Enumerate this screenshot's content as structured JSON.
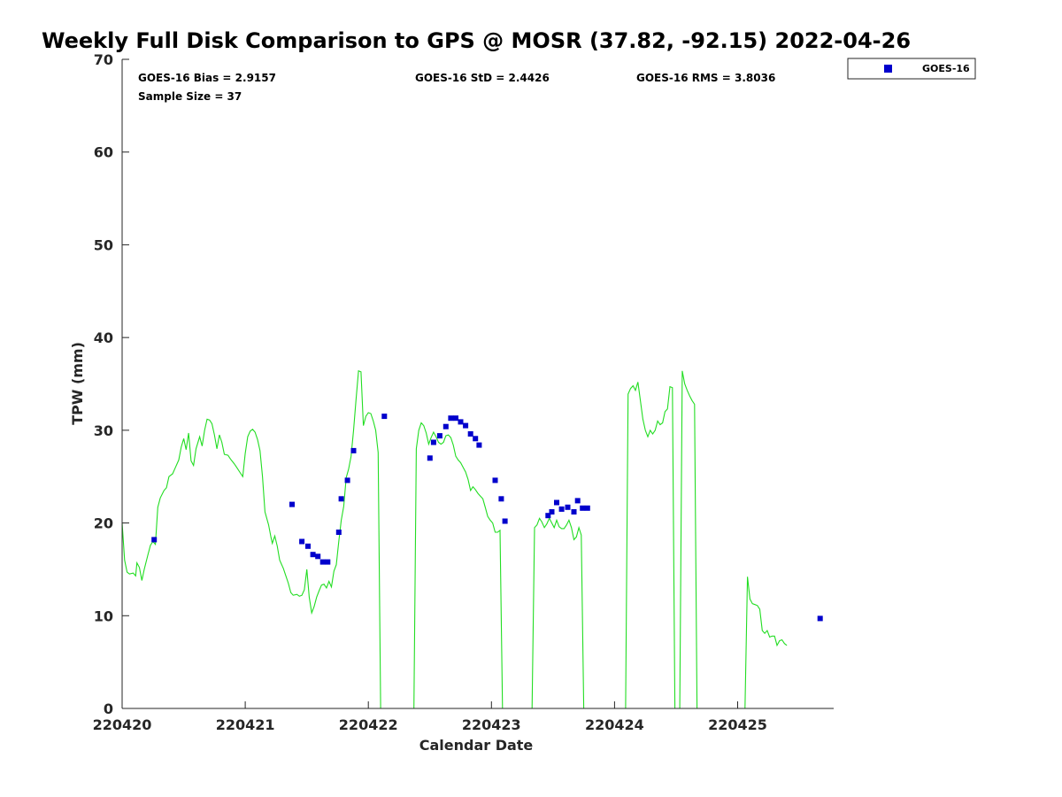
{
  "chart_data": {
    "type": "scatter",
    "title": "Weekly Full Disk Comparison to GPS @ MOSR (37.82, -92.15) 2022-04-26",
    "xlabel": "Calendar Date",
    "ylabel": "TPW (mm)",
    "xlim": [
      0,
      5.78
    ],
    "ylim": [
      0,
      70
    ],
    "x_ticks": [
      {
        "value": 0,
        "label": "220420"
      },
      {
        "value": 1,
        "label": "220421"
      },
      {
        "value": 2,
        "label": "220422"
      },
      {
        "value": 3,
        "label": "220423"
      },
      {
        "value": 4,
        "label": "220424"
      },
      {
        "value": 5,
        "label": "220425"
      }
    ],
    "y_ticks": [
      0,
      10,
      20,
      30,
      40,
      50,
      60,
      70
    ],
    "stats": {
      "bias": "GOES-16 Bias = 2.9157",
      "std": "GOES-16 StD = 2.4426",
      "rms": "GOES-16 RMS = 3.8036",
      "sample": "Sample Size = 37"
    },
    "legend": {
      "label": "GOES-16",
      "position": "top-right outside"
    },
    "colors": {
      "goes": "#0000cc",
      "gps": "#22dd22",
      "axis": "#262626"
    },
    "series": [
      {
        "name": "GOES-16",
        "style": "square-marker",
        "points": [
          [
            0.26,
            18.2
          ],
          [
            1.38,
            22.0
          ],
          [
            1.46,
            18.0
          ],
          [
            1.51,
            17.5
          ],
          [
            1.55,
            16.6
          ],
          [
            1.59,
            16.4
          ],
          [
            1.63,
            15.8
          ],
          [
            1.67,
            15.8
          ],
          [
            1.76,
            19.0
          ],
          [
            1.78,
            22.6
          ],
          [
            1.83,
            24.6
          ],
          [
            1.88,
            27.8
          ],
          [
            2.13,
            31.5
          ],
          [
            2.5,
            27.0
          ],
          [
            2.53,
            28.7
          ],
          [
            2.58,
            29.4
          ],
          [
            2.63,
            30.4
          ],
          [
            2.67,
            31.3
          ],
          [
            2.71,
            31.3
          ],
          [
            2.75,
            30.9
          ],
          [
            2.79,
            30.5
          ],
          [
            2.83,
            29.6
          ],
          [
            2.87,
            29.1
          ],
          [
            2.9,
            28.4
          ],
          [
            3.03,
            24.6
          ],
          [
            3.08,
            22.6
          ],
          [
            3.11,
            20.2
          ],
          [
            3.46,
            20.8
          ],
          [
            3.49,
            21.2
          ],
          [
            3.53,
            22.2
          ],
          [
            3.57,
            21.5
          ],
          [
            3.62,
            21.7
          ],
          [
            3.67,
            21.2
          ],
          [
            3.7,
            22.4
          ],
          [
            3.74,
            21.6
          ],
          [
            3.78,
            21.6
          ],
          [
            5.67,
            9.7
          ]
        ]
      },
      {
        "name": "GPS",
        "style": "line",
        "segments": [
          [
            [
              0.0,
              20.0
            ],
            [
              0.02,
              16.0
            ],
            [
              0.04,
              14.7
            ],
            [
              0.06,
              14.5
            ],
            [
              0.09,
              14.6
            ],
            [
              0.11,
              14.3
            ],
            [
              0.12,
              15.7
            ],
            [
              0.14,
              15.2
            ],
            [
              0.16,
              13.8
            ],
            [
              0.18,
              15.0
            ],
            [
              0.21,
              16.6
            ],
            [
              0.23,
              17.6
            ],
            [
              0.25,
              18.0
            ],
            [
              0.27,
              17.7
            ],
            [
              0.29,
              21.7
            ],
            [
              0.31,
              22.7
            ],
            [
              0.34,
              23.5
            ],
            [
              0.36,
              23.8
            ],
            [
              0.38,
              25.0
            ],
            [
              0.41,
              25.3
            ],
            [
              0.43,
              25.9
            ],
            [
              0.46,
              26.8
            ],
            [
              0.48,
              28.2
            ],
            [
              0.5,
              29.1
            ],
            [
              0.52,
              27.9
            ],
            [
              0.54,
              29.7
            ],
            [
              0.56,
              26.7
            ],
            [
              0.58,
              26.2
            ],
            [
              0.6,
              28.0
            ],
            [
              0.63,
              29.3
            ],
            [
              0.65,
              28.3
            ],
            [
              0.67,
              30.0
            ],
            [
              0.69,
              31.2
            ],
            [
              0.71,
              31.1
            ],
            [
              0.73,
              30.7
            ],
            [
              0.75,
              29.5
            ],
            [
              0.77,
              28.0
            ],
            [
              0.79,
              29.5
            ],
            [
              0.81,
              28.7
            ],
            [
              0.83,
              27.4
            ],
            [
              0.86,
              27.3
            ],
            [
              0.88,
              26.9
            ],
            [
              0.91,
              26.4
            ],
            [
              0.93,
              26.0
            ],
            [
              0.96,
              25.4
            ],
            [
              0.98,
              25.0
            ],
            [
              1.0,
              27.5
            ],
            [
              1.02,
              29.3
            ],
            [
              1.04,
              29.9
            ],
            [
              1.06,
              30.1
            ],
            [
              1.08,
              29.8
            ],
            [
              1.1,
              29.0
            ],
            [
              1.12,
              27.8
            ],
            [
              1.14,
              25.0
            ],
            [
              1.16,
              21.2
            ],
            [
              1.19,
              19.8
            ],
            [
              1.21,
              18.4
            ],
            [
              1.22,
              17.8
            ],
            [
              1.24,
              18.6
            ],
            [
              1.26,
              17.5
            ],
            [
              1.28,
              16.0
            ],
            [
              1.31,
              15.1
            ],
            [
              1.33,
              14.3
            ],
            [
              1.35,
              13.5
            ],
            [
              1.37,
              12.5
            ],
            [
              1.39,
              12.2
            ],
            [
              1.42,
              12.3
            ],
            [
              1.44,
              12.1
            ],
            [
              1.46,
              12.2
            ],
            [
              1.48,
              12.8
            ],
            [
              1.5,
              15.0
            ],
            [
              1.52,
              12.0
            ],
            [
              1.54,
              10.3
            ],
            [
              1.56,
              11.0
            ],
            [
              1.58,
              12.0
            ],
            [
              1.6,
              12.7
            ],
            [
              1.62,
              13.3
            ],
            [
              1.64,
              13.4
            ],
            [
              1.66,
              13.0
            ],
            [
              1.68,
              13.7
            ],
            [
              1.7,
              13.1
            ],
            [
              1.72,
              14.8
            ],
            [
              1.74,
              15.5
            ],
            [
              1.76,
              18.0
            ],
            [
              1.78,
              20.3
            ],
            [
              1.8,
              21.8
            ],
            [
              1.82,
              24.9
            ],
            [
              1.84,
              25.8
            ],
            [
              1.86,
              27.2
            ],
            [
              1.88,
              30.0
            ],
            [
              1.9,
              33.3
            ],
            [
              1.92,
              36.4
            ],
            [
              1.94,
              36.3
            ],
            [
              1.96,
              30.5
            ],
            [
              1.98,
              31.5
            ],
            [
              2.0,
              31.9
            ],
            [
              2.02,
              31.8
            ],
            [
              2.04,
              31.0
            ],
            [
              2.06,
              30.0
            ],
            [
              2.08,
              27.6
            ],
            [
              2.1,
              0.0
            ]
          ],
          [
            [
              2.37,
              0.0
            ],
            [
              2.39,
              28.0
            ],
            [
              2.41,
              30.0
            ],
            [
              2.43,
              30.8
            ],
            [
              2.45,
              30.5
            ],
            [
              2.47,
              29.7
            ],
            [
              2.49,
              28.5
            ],
            [
              2.51,
              29.2
            ],
            [
              2.53,
              29.8
            ],
            [
              2.55,
              29.3
            ],
            [
              2.57,
              28.7
            ],
            [
              2.59,
              28.5
            ],
            [
              2.61,
              28.7
            ],
            [
              2.63,
              29.4
            ],
            [
              2.65,
              29.5
            ],
            [
              2.67,
              29.2
            ],
            [
              2.69,
              28.4
            ],
            [
              2.71,
              27.2
            ],
            [
              2.73,
              26.8
            ],
            [
              2.75,
              26.5
            ],
            [
              2.77,
              26.0
            ],
            [
              2.79,
              25.5
            ],
            [
              2.81,
              24.7
            ],
            [
              2.83,
              23.5
            ],
            [
              2.85,
              23.9
            ],
            [
              2.87,
              23.6
            ],
            [
              2.89,
              23.2
            ],
            [
              2.91,
              22.9
            ],
            [
              2.93,
              22.6
            ],
            [
              2.95,
              21.7
            ],
            [
              2.97,
              20.7
            ],
            [
              2.99,
              20.3
            ],
            [
              3.01,
              20.0
            ],
            [
              3.03,
              19.0
            ],
            [
              3.05,
              19.0
            ],
            [
              3.07,
              19.2
            ],
            [
              3.09,
              0.0
            ]
          ],
          [
            [
              3.33,
              0.0
            ],
            [
              3.35,
              19.5
            ],
            [
              3.37,
              19.8
            ],
            [
              3.39,
              20.5
            ],
            [
              3.41,
              20.1
            ],
            [
              3.43,
              19.5
            ],
            [
              3.45,
              19.9
            ],
            [
              3.47,
              20.5
            ],
            [
              3.49,
              20.0
            ],
            [
              3.51,
              19.5
            ],
            [
              3.53,
              20.3
            ],
            [
              3.55,
              19.6
            ],
            [
              3.57,
              19.4
            ],
            [
              3.59,
              19.4
            ],
            [
              3.61,
              19.8
            ],
            [
              3.63,
              20.3
            ],
            [
              3.65,
              19.5
            ],
            [
              3.67,
              18.2
            ],
            [
              3.69,
              18.5
            ],
            [
              3.71,
              19.5
            ],
            [
              3.73,
              18.7
            ],
            [
              3.75,
              0.0
            ]
          ],
          [
            [
              4.09,
              0.0
            ],
            [
              4.11,
              33.9
            ],
            [
              4.13,
              34.5
            ],
            [
              4.15,
              34.8
            ],
            [
              4.17,
              34.3
            ],
            [
              4.19,
              35.2
            ],
            [
              4.21,
              33.2
            ],
            [
              4.23,
              31.2
            ],
            [
              4.25,
              30.0
            ],
            [
              4.27,
              29.3
            ],
            [
              4.29,
              30.0
            ],
            [
              4.31,
              29.6
            ],
            [
              4.33,
              30.0
            ],
            [
              4.35,
              31.0
            ],
            [
              4.37,
              30.6
            ],
            [
              4.39,
              30.8
            ],
            [
              4.41,
              32.0
            ],
            [
              4.43,
              32.3
            ],
            [
              4.45,
              34.7
            ],
            [
              4.47,
              34.6
            ],
            [
              4.49,
              0.0
            ]
          ],
          [
            [
              4.53,
              0.0
            ],
            [
              4.55,
              36.4
            ],
            [
              4.57,
              35.0
            ],
            [
              4.59,
              34.3
            ],
            [
              4.61,
              33.7
            ],
            [
              4.63,
              33.2
            ],
            [
              4.65,
              32.8
            ],
            [
              4.67,
              0.0
            ]
          ],
          [
            [
              5.06,
              0.0
            ],
            [
              5.08,
              14.2
            ],
            [
              5.1,
              11.8
            ],
            [
              5.12,
              11.3
            ],
            [
              5.14,
              11.2
            ],
            [
              5.16,
              11.1
            ],
            [
              5.18,
              10.7
            ],
            [
              5.2,
              8.4
            ],
            [
              5.22,
              8.1
            ],
            [
              5.24,
              8.4
            ],
            [
              5.26,
              7.7
            ],
            [
              5.28,
              7.8
            ],
            [
              5.3,
              7.8
            ],
            [
              5.32,
              6.8
            ],
            [
              5.34,
              7.3
            ],
            [
              5.36,
              7.4
            ],
            [
              5.38,
              7.0
            ],
            [
              5.4,
              6.8
            ]
          ]
        ]
      }
    ]
  }
}
